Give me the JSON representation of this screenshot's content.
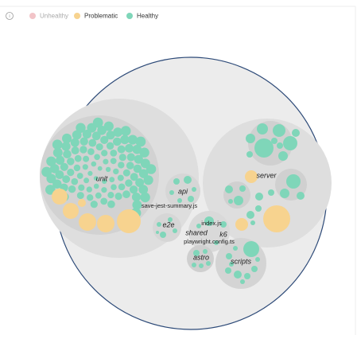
{
  "legend": [
    "Unhealthy",
    "Problematic",
    "Healthy"
  ],
  "labels": {
    "unit": "unit",
    "api": "api",
    "save_jest": "save-jest-summary.js",
    "e2e": "e2e",
    "index": "index.js",
    "shared": "shared",
    "k6": "k6",
    "playwright": "playwright.config.ts",
    "astro": "astro",
    "server": "server",
    "scripts": "scripts"
  }
}
